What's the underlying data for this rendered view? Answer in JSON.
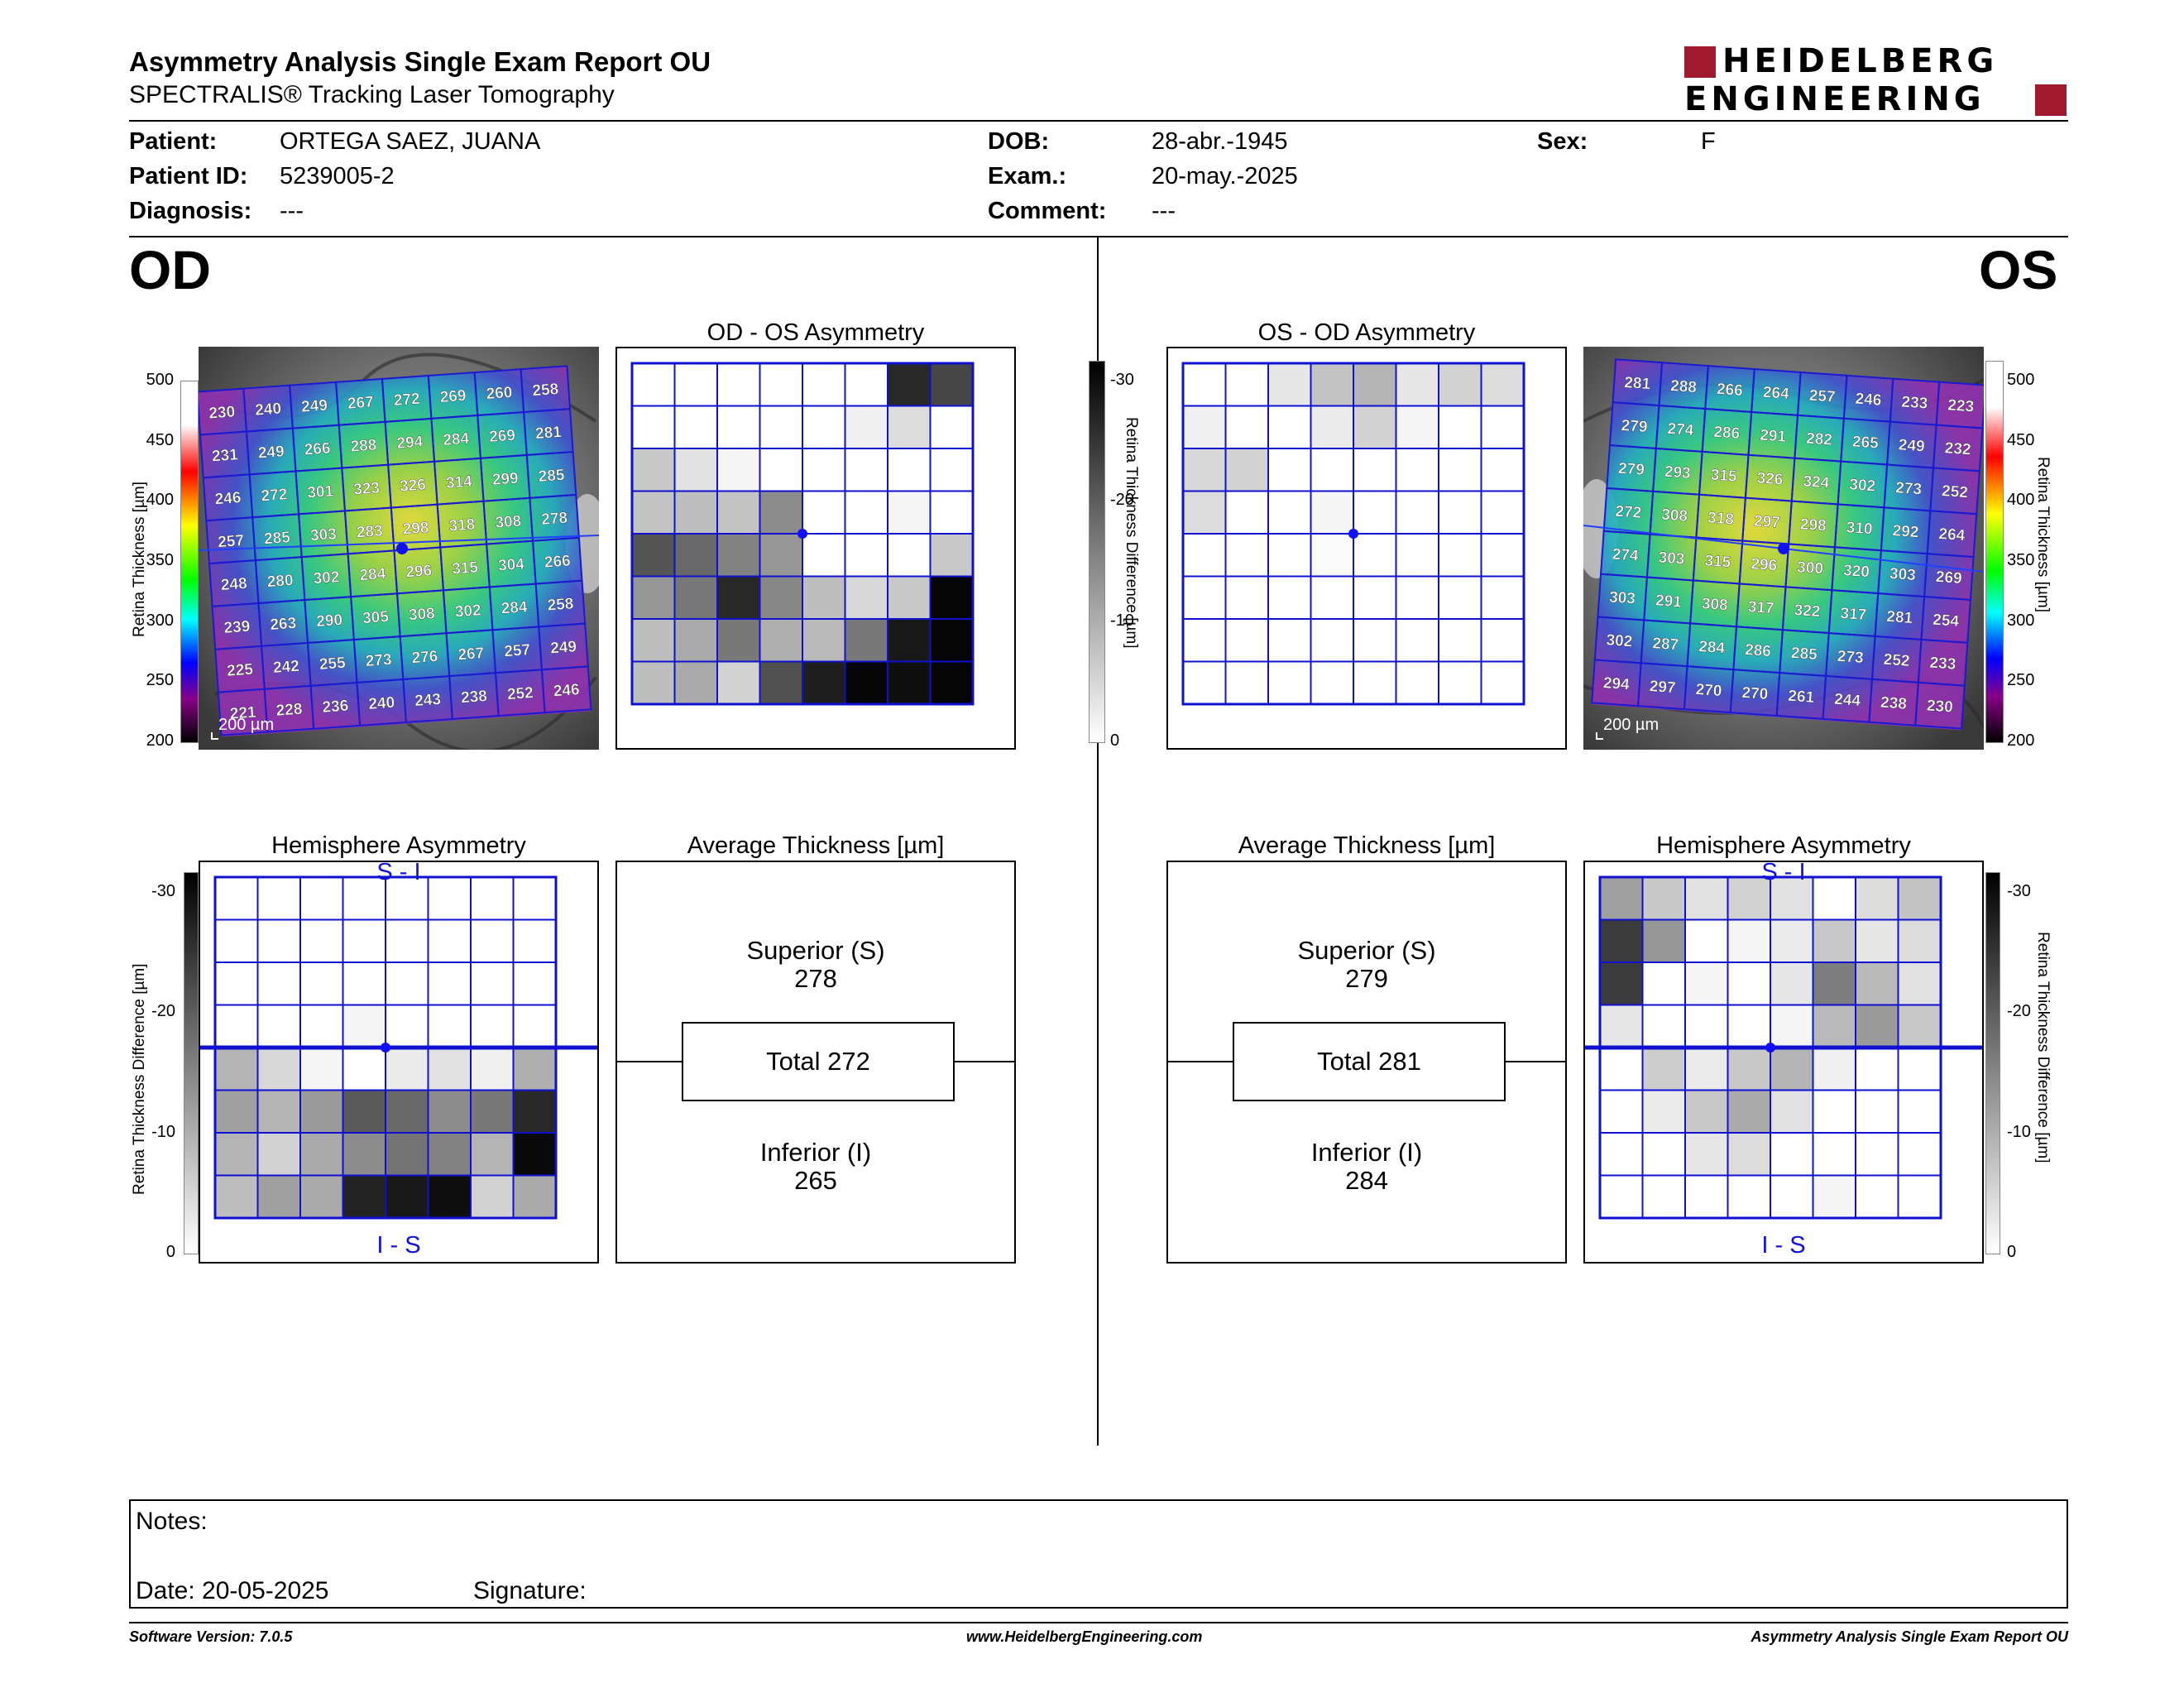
{
  "report": {
    "title": "Asymmetry Analysis Single Exam Report OU",
    "subtitle": "SPECTRALIS® Tracking Laser Tomography",
    "logo_line1": "HEIDELBERG",
    "logo_line2": "ENGINEERING",
    "brand_color": "#a01a2e"
  },
  "patient": {
    "patient_label": "Patient:",
    "patient_value": "ORTEGA SAEZ, JUANA",
    "id_label": "Patient ID:",
    "id_value": "5239005-2",
    "diagnosis_label": "Diagnosis:",
    "diagnosis_value": "---",
    "dob_label": "DOB:",
    "dob_value": "28-abr.-1945",
    "exam_label": "Exam.:",
    "exam_value": "20-may.-2025",
    "comment_label": "Comment:",
    "comment_value": "---",
    "sex_label": "Sex:",
    "sex_value": "F"
  },
  "od": {
    "eye_label": "OD",
    "asym_title": "OD - OS Asymmetry",
    "hemi_title": "Hemisphere Asymmetry",
    "avg_title": "Average Thickness [µm]",
    "hemi_top": "S - I",
    "hemi_bottom": "I - S",
    "scale_label": "200 µm",
    "superior_label": "Superior (S)",
    "superior_value": "278",
    "total_label": "Total 272",
    "inferior_label": "Inferior (I)",
    "inferior_value": "265",
    "thickness_grid": [
      [
        230,
        240,
        249,
        267,
        272,
        269,
        260,
        258
      ],
      [
        231,
        249,
        266,
        288,
        294,
        284,
        269,
        281
      ],
      [
        246,
        272,
        301,
        323,
        326,
        314,
        299,
        285
      ],
      [
        257,
        285,
        303,
        283,
        298,
        318,
        308,
        278
      ],
      [
        248,
        280,
        302,
        284,
        296,
        315,
        304,
        266
      ],
      [
        239,
        263,
        290,
        305,
        308,
        302,
        284,
        258
      ],
      [
        225,
        242,
        255,
        273,
        276,
        267,
        257,
        249
      ],
      [
        221,
        228,
        236,
        240,
        243,
        238,
        252,
        246
      ]
    ],
    "asym_gray": [
      [
        255,
        255,
        255,
        255,
        255,
        255,
        40,
        70
      ],
      [
        255,
        255,
        255,
        255,
        255,
        240,
        220,
        255
      ],
      [
        200,
        225,
        245,
        255,
        255,
        255,
        255,
        255
      ],
      [
        195,
        190,
        195,
        140,
        255,
        255,
        245,
        255
      ],
      [
        85,
        105,
        130,
        150,
        255,
        255,
        255,
        200
      ],
      [
        150,
        120,
        40,
        135,
        190,
        215,
        200,
        5
      ],
      [
        190,
        170,
        120,
        175,
        185,
        120,
        25,
        5
      ],
      [
        190,
        170,
        210,
        80,
        30,
        5,
        15,
        5
      ]
    ],
    "hemi_gray": [
      [
        255,
        255,
        255,
        255,
        255,
        255,
        255,
        255
      ],
      [
        255,
        255,
        255,
        255,
        255,
        255,
        255,
        255
      ],
      [
        255,
        255,
        255,
        255,
        255,
        255,
        255,
        255
      ],
      [
        255,
        255,
        255,
        245,
        255,
        255,
        255,
        255
      ],
      [
        180,
        215,
        245,
        255,
        235,
        225,
        240,
        175
      ],
      [
        160,
        180,
        155,
        90,
        105,
        140,
        120,
        40
      ],
      [
        180,
        210,
        170,
        140,
        115,
        130,
        180,
        10
      ],
      [
        190,
        160,
        170,
        35,
        25,
        15,
        210,
        170
      ]
    ]
  },
  "os": {
    "eye_label": "OS",
    "asym_title": "OS - OD Asymmetry",
    "hemi_title": "Hemisphere Asymmetry",
    "avg_title": "Average Thickness [µm]",
    "hemi_top": "S - I",
    "hemi_bottom": "I - S",
    "scale_label": "200 µm",
    "superior_label": "Superior (S)",
    "superior_value": "279",
    "total_label": "Total 281",
    "inferior_label": "Inferior (I)",
    "inferior_value": "284",
    "thickness_grid": [
      [
        281,
        288,
        266,
        264,
        257,
        246,
        233,
        223
      ],
      [
        279,
        274,
        286,
        291,
        282,
        265,
        249,
        232
      ],
      [
        279,
        293,
        315,
        326,
        324,
        302,
        273,
        252
      ],
      [
        272,
        308,
        318,
        297,
        298,
        310,
        292,
        264
      ],
      [
        274,
        303,
        315,
        296,
        300,
        320,
        303,
        269
      ],
      [
        303,
        291,
        308,
        317,
        322,
        317,
        281,
        254
      ],
      [
        302,
        287,
        284,
        286,
        285,
        273,
        252,
        233
      ],
      [
        294,
        297,
        270,
        270,
        261,
        244,
        238,
        230
      ]
    ],
    "asym_gray": [
      [
        255,
        255,
        230,
        195,
        180,
        230,
        210,
        220
      ],
      [
        240,
        255,
        255,
        235,
        210,
        245,
        255,
        255
      ],
      [
        215,
        210,
        255,
        255,
        255,
        255,
        255,
        255
      ],
      [
        220,
        255,
        255,
        245,
        255,
        255,
        255,
        255
      ],
      [
        255,
        255,
        255,
        250,
        255,
        255,
        255,
        255
      ],
      [
        255,
        255,
        255,
        255,
        255,
        255,
        255,
        255
      ],
      [
        255,
        255,
        255,
        255,
        255,
        255,
        255,
        255
      ],
      [
        255,
        255,
        255,
        255,
        255,
        255,
        255,
        255
      ]
    ],
    "hemi_gray": [
      [
        160,
        200,
        225,
        210,
        225,
        255,
        220,
        195
      ],
      [
        60,
        150,
        255,
        245,
        235,
        200,
        230,
        220
      ],
      [
        60,
        255,
        245,
        255,
        230,
        125,
        185,
        225
      ],
      [
        230,
        255,
        255,
        255,
        245,
        185,
        155,
        200
      ],
      [
        255,
        205,
        235,
        200,
        180,
        240,
        255,
        255
      ],
      [
        255,
        235,
        200,
        170,
        225,
        255,
        255,
        255
      ],
      [
        255,
        255,
        230,
        220,
        255,
        255,
        255,
        255
      ],
      [
        255,
        255,
        255,
        255,
        255,
        245,
        255,
        255
      ]
    ]
  },
  "thickness_scale": {
    "title": "Retina Thickness [µm]",
    "ticks": [
      "500",
      "450",
      "400",
      "350",
      "300",
      "250",
      "200"
    ]
  },
  "difference_scale": {
    "title": "Retina Thickness Difference [µm]",
    "ticks": [
      "-30",
      "-20",
      "-10",
      "0"
    ]
  },
  "notes": {
    "notes_label": "Notes:",
    "date_label": "Date: 20-05-2025",
    "signature_label": "Signature:"
  },
  "footer": {
    "version": "Software Version: 7.0.5",
    "website": "www.HeidelbergEngineering.com",
    "report_name": "Asymmetry Analysis Single Exam Report OU"
  }
}
